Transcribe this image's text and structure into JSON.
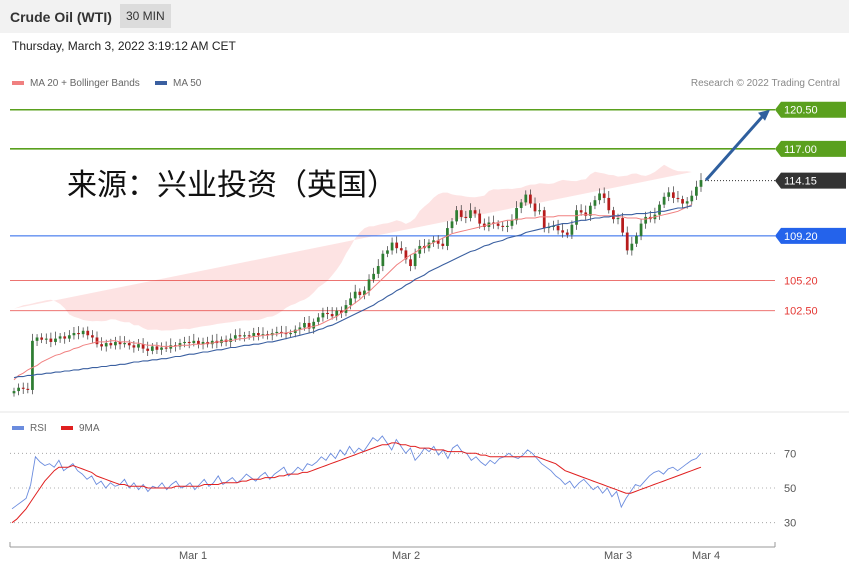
{
  "header": {
    "title": "Crude Oil (WTI)",
    "interval": "30 MIN"
  },
  "timestamp": "Thursday, March 3, 2022 3:19:12 AM CET",
  "legend": {
    "ma20": "MA 20 + Bollinger Bands",
    "ma50": "MA 50",
    "rsi": "RSI",
    "ma9": "9MA"
  },
  "copyright": "Research © 2022 Trading Central",
  "watermark": "来源：兴业投资（英国）",
  "colors": {
    "bullish": "#2e7d32",
    "bearish": "#b71c1c",
    "ma20": "#f08080",
    "ma50": "#3a5fa0",
    "bands": "#fde0e0",
    "resistance": "#5aa01e",
    "support": "#e53935",
    "pivot": "#2463eb",
    "last": "#333333",
    "rsi": "#6b8cde",
    "rsi_ma": "#e02020",
    "arrow": "#2f5f9e"
  },
  "chart_data": [
    {
      "type": "candlestick",
      "title": "Crude Oil (WTI)",
      "interval": "30 MIN",
      "ylim": [
        94.5,
        122
      ],
      "x_ticks": [
        "Mar 1",
        "Mar 2",
        "Mar 3",
        "Mar 4"
      ],
      "closes": [
        95.3,
        95.6,
        95.5,
        95.4,
        99.8,
        100.1,
        99.9,
        100.0,
        99.7,
        100.0,
        100.2,
        100.0,
        100.3,
        100.5,
        100.4,
        100.7,
        100.3,
        100.1,
        99.5,
        99.3,
        99.6,
        99.4,
        99.7,
        99.5,
        99.6,
        99.4,
        99.2,
        99.5,
        99.1,
        98.9,
        99.3,
        99.0,
        99.2,
        99.1,
        99.4,
        99.3,
        99.6,
        99.7,
        99.6,
        99.8,
        99.5,
        99.7,
        99.5,
        99.8,
        99.6,
        99.9,
        99.7,
        100.0,
        100.3,
        100.2,
        100.3,
        100.2,
        100.5,
        100.3,
        100.4,
        100.3,
        100.5,
        100.6,
        100.5,
        100.4,
        100.5,
        100.8,
        101.0,
        101.4,
        100.9,
        101.5,
        101.9,
        102.3,
        102.2,
        102.0,
        102.5,
        102.3,
        103.0,
        103.6,
        104.2,
        103.9,
        104.3,
        105.3,
        105.8,
        106.5,
        107.6,
        107.9,
        108.6,
        108.1,
        107.9,
        107.1,
        106.5,
        107.6,
        108.3,
        108.1,
        108.6,
        108.8,
        108.5,
        108.3,
        109.9,
        110.5,
        111.5,
        110.9,
        110.8,
        111.5,
        111.2,
        110.3,
        110.0,
        110.4,
        110.3,
        110.1,
        110.0,
        110.1,
        110.6,
        111.7,
        112.2,
        112.9,
        112.1,
        111.4,
        111.5,
        109.9,
        110.0,
        110.1,
        109.7,
        109.5,
        109.3,
        110.2,
        111.5,
        111.3,
        111.0,
        111.9,
        112.4,
        113.0,
        112.6,
        111.5,
        110.7,
        110.8,
        109.5,
        107.9,
        108.5,
        109.2,
        110.3,
        110.9,
        110.7,
        111.1,
        112.0,
        112.7,
        113.1,
        112.6,
        112.5,
        112.1,
        112.3,
        112.8,
        113.6,
        114.2
      ],
      "series": [
        {
          "name": "MA 20 + Bollinger Bands",
          "values": [
            96.3,
            96.7,
            96.9,
            97.2,
            97.4,
            97.6,
            97.9,
            98.1,
            98.3,
            98.5,
            98.6,
            98.8,
            98.9,
            99.1,
            99.2,
            99.4,
            99.5,
            99.6,
            99.7,
            99.7,
            99.7,
            99.8,
            99.8,
            99.7,
            99.7,
            99.7,
            99.6,
            99.6,
            99.5,
            99.4,
            99.4,
            99.4,
            99.3,
            99.3,
            99.3,
            99.3,
            99.4,
            99.4,
            99.4,
            99.5,
            99.5,
            99.5,
            99.6,
            99.6,
            99.7,
            99.7,
            99.8,
            99.8,
            99.9,
            100.0,
            100.0,
            100.1,
            100.2,
            100.2,
            100.3,
            100.3,
            100.4,
            100.4,
            100.5,
            100.5,
            100.6,
            100.7,
            100.8,
            100.9,
            101.0,
            101.1,
            101.2,
            101.4,
            101.6,
            101.8,
            102.0,
            102.3,
            102.6,
            102.9,
            103.2,
            103.5,
            103.9,
            104.2,
            104.6,
            105.0,
            105.4,
            105.8,
            106.2,
            106.6,
            106.9,
            107.2,
            107.5,
            107.7,
            108.0,
            108.2,
            108.4,
            108.6,
            108.8,
            109.0,
            109.2,
            109.4,
            109.5,
            109.6,
            109.7,
            109.8,
            109.9,
            110.0,
            110.1,
            110.2,
            110.3,
            110.4,
            110.5,
            110.6,
            110.6,
            110.7,
            110.7,
            110.8,
            110.8,
            110.8,
            110.9,
            110.9,
            110.9,
            110.9,
            111.0,
            111.0,
            111.0,
            111.0,
            111.0,
            111.1,
            111.1,
            111.1,
            111.1,
            111.0,
            111.0,
            111.0,
            111.0,
            110.9,
            110.9,
            110.8,
            110.8,
            110.8,
            110.7,
            110.7,
            110.8,
            110.9,
            111.0,
            111.1,
            111.2,
            111.3,
            111.4,
            111.6,
            111.8,
            112.0
          ]
        },
        {
          "name": "MA 50",
          "values": [
            96.5,
            96.6,
            96.6,
            96.7,
            96.7,
            96.8,
            96.8,
            96.9,
            96.9,
            97.0,
            97.0,
            97.1,
            97.1,
            97.2,
            97.2,
            97.3,
            97.3,
            97.4,
            97.4,
            97.5,
            97.5,
            97.6,
            97.6,
            97.7,
            97.7,
            97.8,
            97.9,
            97.9,
            98.0,
            98.0,
            98.1,
            98.1,
            98.2,
            98.2,
            98.3,
            98.4,
            98.4,
            98.5,
            98.6,
            98.6,
            98.7,
            98.8,
            98.8,
            98.9,
            99.0,
            99.0,
            99.1,
            99.2,
            99.2,
            99.3,
            99.4,
            99.4,
            99.5,
            99.5,
            99.6,
            99.7,
            99.7,
            99.8,
            99.9,
            100.0,
            100.1,
            100.2,
            100.3,
            100.4,
            100.5,
            100.6,
            100.8,
            100.9,
            101.1,
            101.2,
            101.4,
            101.6,
            101.8,
            102.0,
            102.2,
            102.4,
            102.6,
            102.8,
            103.0,
            103.3,
            103.5,
            103.8,
            104.0,
            104.3,
            104.5,
            104.8,
            105.0,
            105.3,
            105.5,
            105.7,
            106.0,
            106.2,
            106.4,
            106.6,
            106.8,
            107.0,
            107.2,
            107.4,
            107.6,
            107.8,
            107.9,
            108.1,
            108.3,
            108.4,
            108.6,
            108.7,
            108.8,
            109.0,
            109.1,
            109.2,
            109.3,
            109.5,
            109.6,
            109.7,
            109.8,
            109.9,
            110.0,
            110.1,
            110.2,
            110.3,
            110.3,
            110.4,
            110.5,
            110.6,
            110.6,
            110.7,
            110.8,
            110.8,
            110.9,
            110.9,
            111.0,
            111.0,
            111.1,
            111.1,
            111.1,
            111.2,
            111.2,
            111.2,
            111.3,
            111.3,
            111.4,
            111.4,
            111.5,
            111.6,
            111.7,
            111.7,
            111.8,
            111.9
          ]
        }
      ],
      "horizontal_levels": [
        {
          "label": "120.50",
          "value": 120.5,
          "kind": "resistance"
        },
        {
          "label": "117.00",
          "value": 117.0,
          "kind": "resistance"
        },
        {
          "label": "114.15",
          "value": 114.15,
          "kind": "last"
        },
        {
          "label": "109.20",
          "value": 109.2,
          "kind": "pivot"
        },
        {
          "label": "105.20",
          "value": 105.2,
          "kind": "support"
        },
        {
          "label": "102.50",
          "value": 102.5,
          "kind": "support"
        }
      ],
      "arrow": {
        "from": 114.2,
        "to": 120.5
      }
    },
    {
      "type": "line",
      "y_ticks": [
        "70",
        "50",
        "30"
      ],
      "ylim": [
        20,
        80
      ],
      "series": [
        {
          "name": "RSI",
          "values": [
            38,
            40,
            42,
            44,
            52,
            68,
            65,
            63,
            64,
            62,
            66,
            60,
            62,
            64,
            60,
            58,
            55,
            57,
            52,
            54,
            50,
            53,
            51,
            52,
            55,
            50,
            53,
            49,
            52,
            48,
            51,
            50,
            53,
            49,
            52,
            54,
            50,
            51,
            53,
            49,
            52,
            55,
            51,
            53,
            57,
            52,
            54,
            56,
            53,
            55,
            58,
            56,
            54,
            57,
            59,
            55,
            58,
            60,
            62,
            57,
            59,
            62,
            60,
            64,
            63,
            65,
            68,
            66,
            70,
            67,
            72,
            69,
            74,
            70,
            73,
            71,
            75,
            79,
            77,
            80,
            76,
            72,
            78,
            74,
            70,
            73,
            66,
            69,
            73,
            71,
            74,
            69,
            72,
            67,
            73,
            75,
            71,
            70,
            66,
            68,
            65,
            63,
            66,
            64,
            67,
            68,
            70,
            68,
            67,
            69,
            72,
            70,
            67,
            64,
            62,
            60,
            57,
            55,
            52,
            54,
            50,
            53,
            55,
            52,
            49,
            51,
            47,
            50,
            45,
            48,
            39,
            44,
            48,
            52,
            51,
            54,
            57,
            59,
            60,
            58,
            61,
            62,
            60,
            62,
            64,
            66,
            67,
            70
          ]
        },
        {
          "name": "9MA",
          "values": [
            30,
            32,
            35,
            38,
            42,
            46,
            50,
            54,
            57,
            60,
            62,
            62,
            62,
            63,
            62,
            61,
            60,
            59,
            57,
            56,
            55,
            54,
            53,
            52,
            52,
            51,
            51,
            51,
            51,
            50,
            50,
            50,
            50,
            50,
            50,
            51,
            51,
            51,
            51,
            51,
            51,
            52,
            52,
            52,
            52,
            53,
            53,
            53,
            53,
            54,
            54,
            55,
            55,
            55,
            56,
            56,
            56,
            57,
            57,
            58,
            58,
            58,
            59,
            59,
            60,
            61,
            62,
            63,
            64,
            65,
            66,
            67,
            68,
            69,
            70,
            71,
            72,
            73,
            74,
            75,
            75,
            76,
            76,
            75,
            75,
            74,
            74,
            73,
            73,
            73,
            72,
            72,
            72,
            71,
            71,
            71,
            71,
            70,
            70,
            70,
            69,
            69,
            68,
            68,
            68,
            68,
            68,
            68,
            68,
            68,
            68,
            68,
            68,
            67,
            66,
            65,
            64,
            62,
            60,
            59,
            58,
            57,
            56,
            55,
            54,
            53,
            52,
            51,
            50,
            49,
            48,
            47,
            47,
            48,
            49,
            50,
            51,
            52,
            53,
            54,
            55,
            56,
            57,
            58,
            59,
            60,
            61,
            62
          ]
        }
      ]
    }
  ]
}
